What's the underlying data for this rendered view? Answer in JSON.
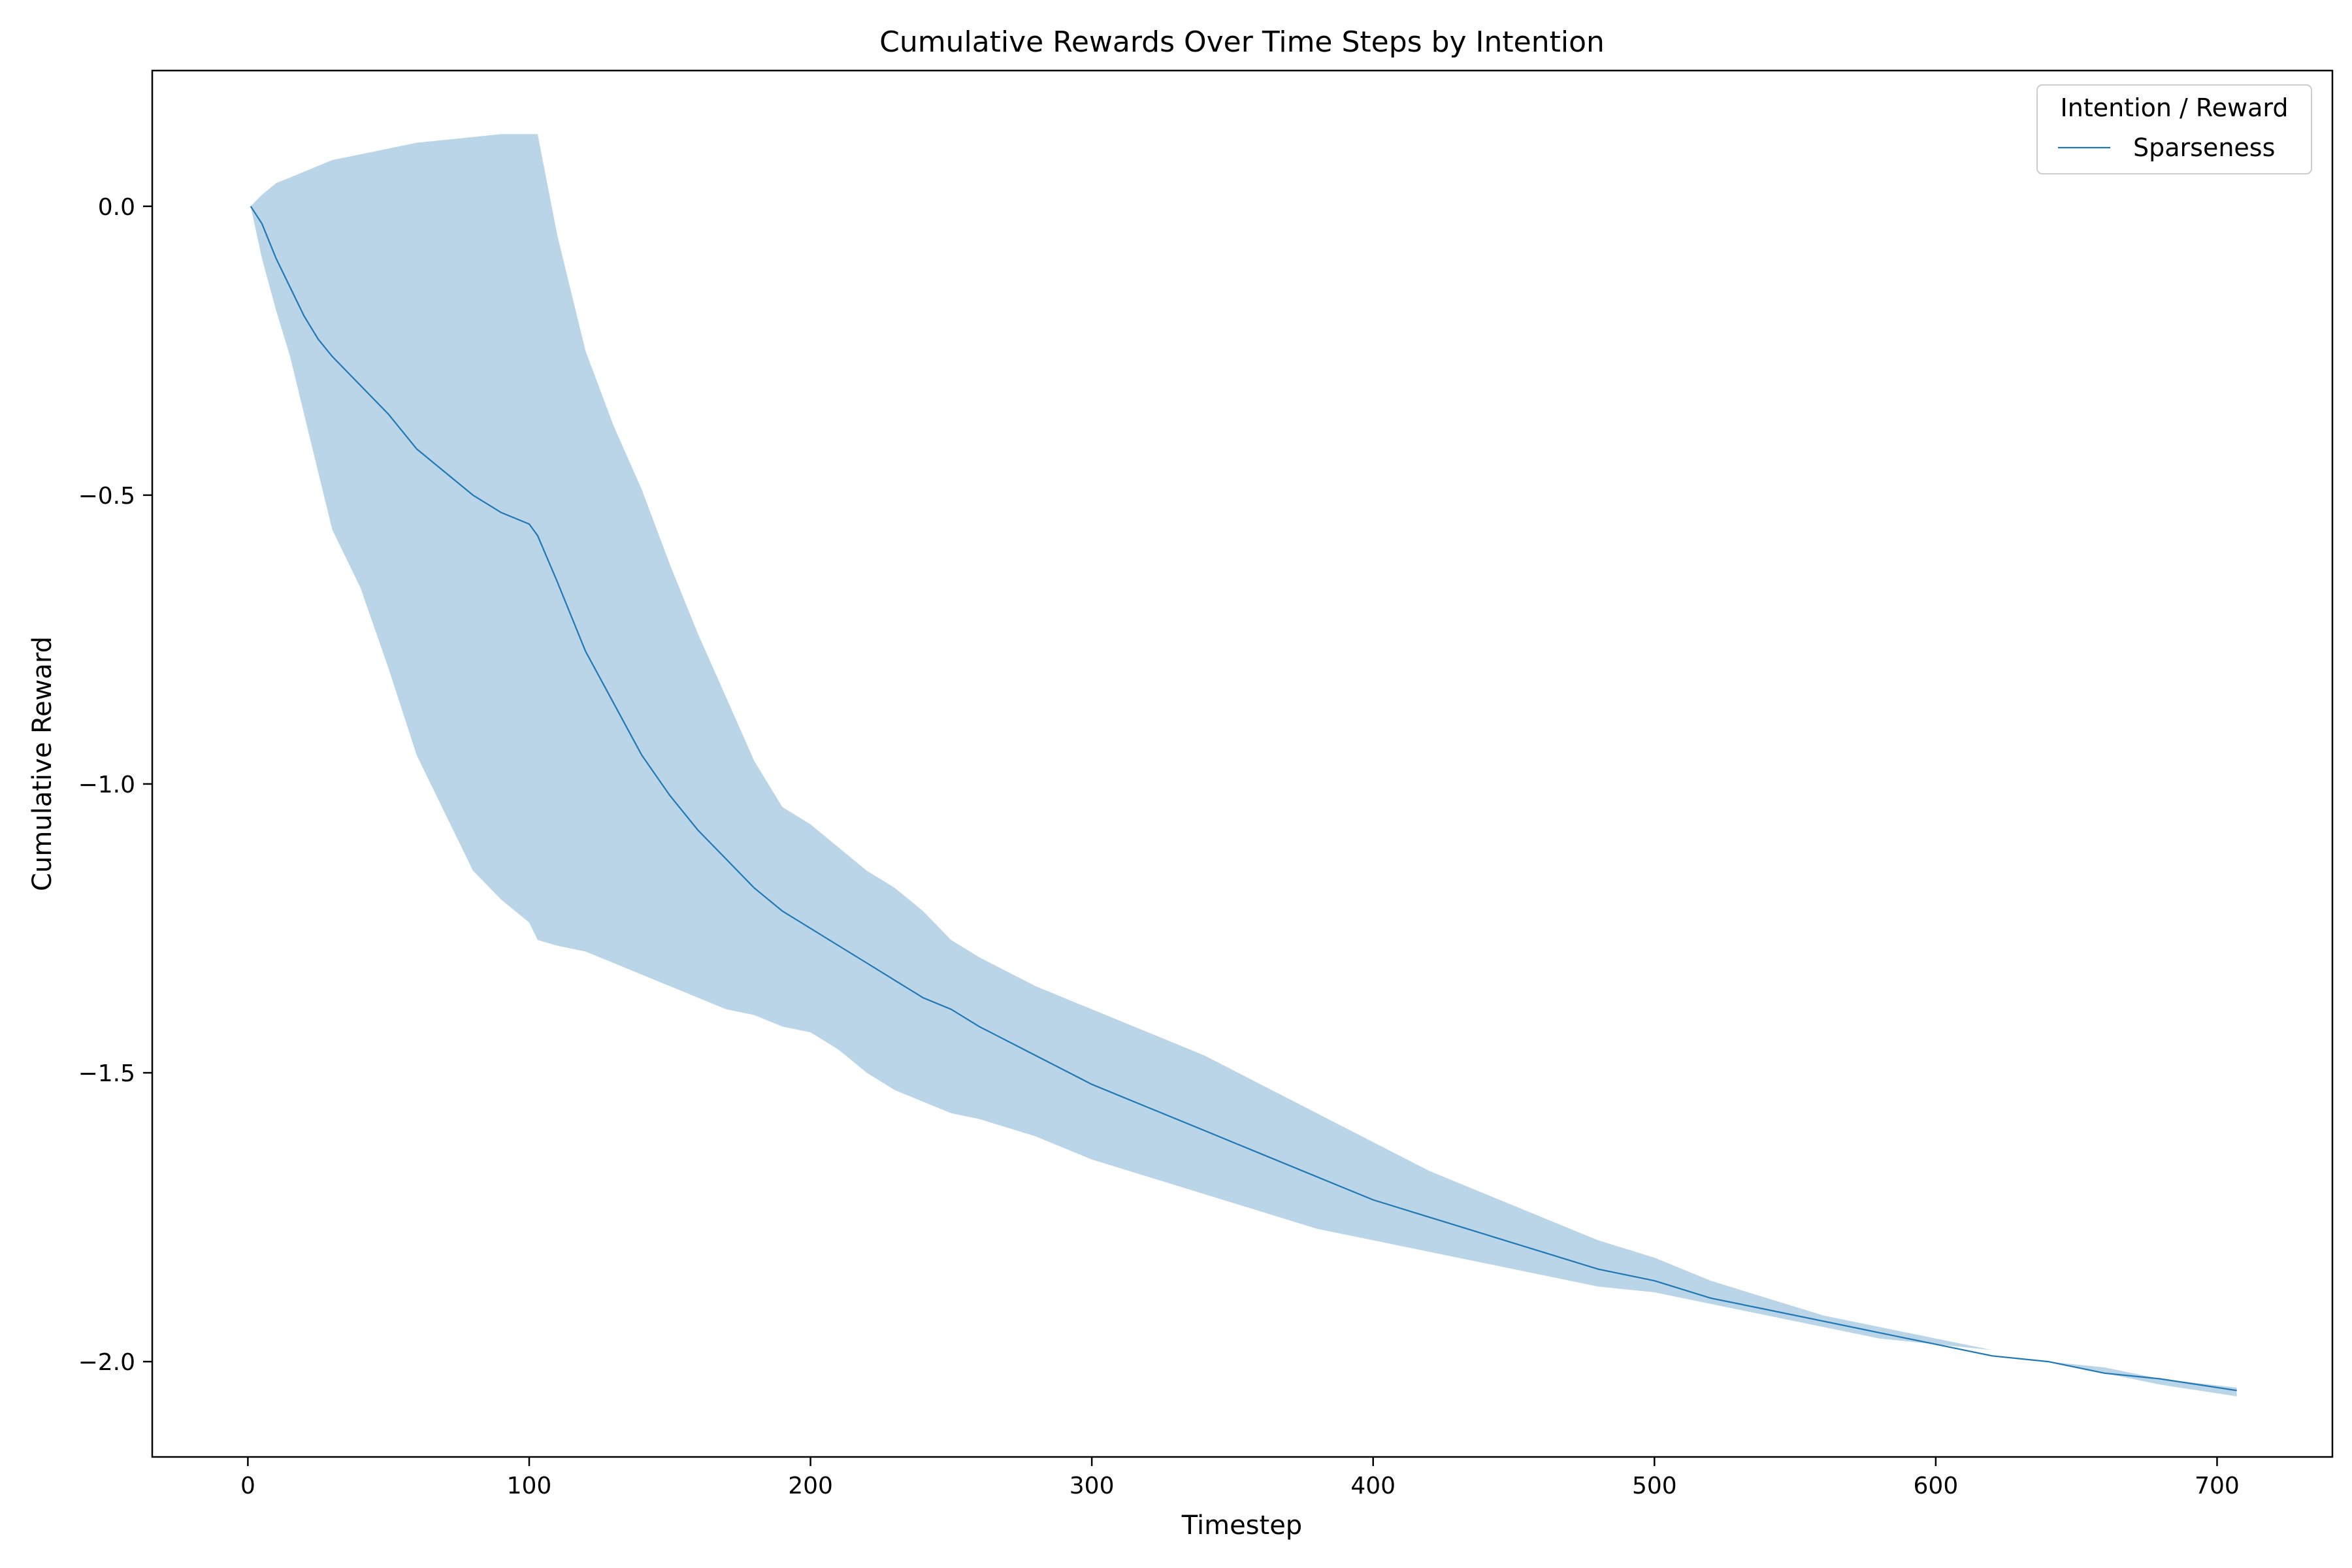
{
  "chart_data": {
    "type": "line",
    "title": "Cumulative Rewards Over Time Steps by Intention",
    "xlabel": "Timestep",
    "ylabel": "Cumulative Reward",
    "xlim": [
      -34,
      741
    ],
    "ylim": [
      -2.165,
      0.235
    ],
    "xticks": [
      0,
      100,
      200,
      300,
      400,
      500,
      600,
      700
    ],
    "yticks": [
      0.0,
      -0.5,
      -1.0,
      -1.5,
      -2.0
    ],
    "xtick_labels": [
      "0",
      "100",
      "200",
      "300",
      "400",
      "500",
      "600",
      "700"
    ],
    "ytick_labels": [
      "0.0",
      "−0.5",
      "−1.0",
      "−1.5",
      "−2.0"
    ],
    "grid": false,
    "legend": {
      "title": "Intention / Reward",
      "position": "top-right"
    },
    "band_color": "#bad5e8",
    "line_color": "#1f77b4",
    "x": [
      1,
      5,
      10,
      15,
      20,
      25,
      30,
      40,
      50,
      60,
      70,
      80,
      90,
      100,
      103,
      110,
      120,
      130,
      140,
      150,
      160,
      170,
      180,
      190,
      200,
      210,
      220,
      230,
      240,
      250,
      260,
      280,
      300,
      320,
      340,
      360,
      380,
      400,
      420,
      440,
      460,
      480,
      500,
      520,
      540,
      560,
      580,
      600,
      620,
      640,
      660,
      680,
      707
    ],
    "series": [
      {
        "name": "Sparseness",
        "mean": [
          0.0,
          -0.03,
          -0.09,
          -0.14,
          -0.19,
          -0.23,
          -0.26,
          -0.31,
          -0.36,
          -0.42,
          -0.46,
          -0.5,
          -0.53,
          -0.55,
          -0.57,
          -0.65,
          -0.77,
          -0.86,
          -0.95,
          -1.02,
          -1.08,
          -1.13,
          -1.18,
          -1.22,
          -1.25,
          -1.28,
          -1.31,
          -1.34,
          -1.37,
          -1.39,
          -1.42,
          -1.47,
          -1.52,
          -1.56,
          -1.6,
          -1.64,
          -1.68,
          -1.72,
          -1.75,
          -1.78,
          -1.81,
          -1.84,
          -1.86,
          -1.89,
          -1.91,
          -1.93,
          -1.95,
          -1.97,
          -1.99,
          -2.0,
          -2.02,
          -2.03,
          -2.05
        ],
        "lower": [
          0.0,
          -0.09,
          -0.18,
          -0.26,
          -0.36,
          -0.46,
          -0.56,
          -0.66,
          -0.8,
          -0.95,
          -1.05,
          -1.15,
          -1.2,
          -1.24,
          -1.27,
          -1.28,
          -1.29,
          -1.31,
          -1.33,
          -1.35,
          -1.37,
          -1.39,
          -1.4,
          -1.42,
          -1.43,
          -1.46,
          -1.5,
          -1.53,
          -1.55,
          -1.57,
          -1.58,
          -1.61,
          -1.65,
          -1.68,
          -1.71,
          -1.74,
          -1.77,
          -1.79,
          -1.81,
          -1.83,
          -1.85,
          -1.87,
          -1.88,
          -1.9,
          -1.92,
          -1.94,
          -1.96,
          -1.97,
          -1.98,
          -2.0,
          -2.02,
          -2.04,
          -2.06
        ],
        "upper": [
          0.0,
          0.02,
          0.04,
          0.05,
          0.06,
          0.07,
          0.08,
          0.09,
          0.1,
          0.11,
          0.115,
          0.12,
          0.125,
          0.125,
          0.125,
          -0.05,
          -0.25,
          -0.38,
          -0.49,
          -0.62,
          -0.74,
          -0.85,
          -0.96,
          -1.04,
          -1.07,
          -1.11,
          -1.15,
          -1.18,
          -1.22,
          -1.27,
          -1.3,
          -1.35,
          -1.39,
          -1.43,
          -1.47,
          -1.52,
          -1.57,
          -1.62,
          -1.67,
          -1.71,
          -1.75,
          -1.79,
          -1.82,
          -1.86,
          -1.89,
          -1.92,
          -1.94,
          -1.96,
          -1.98,
          -2.0,
          -2.01,
          -2.03,
          -2.045
        ]
      }
    ]
  }
}
